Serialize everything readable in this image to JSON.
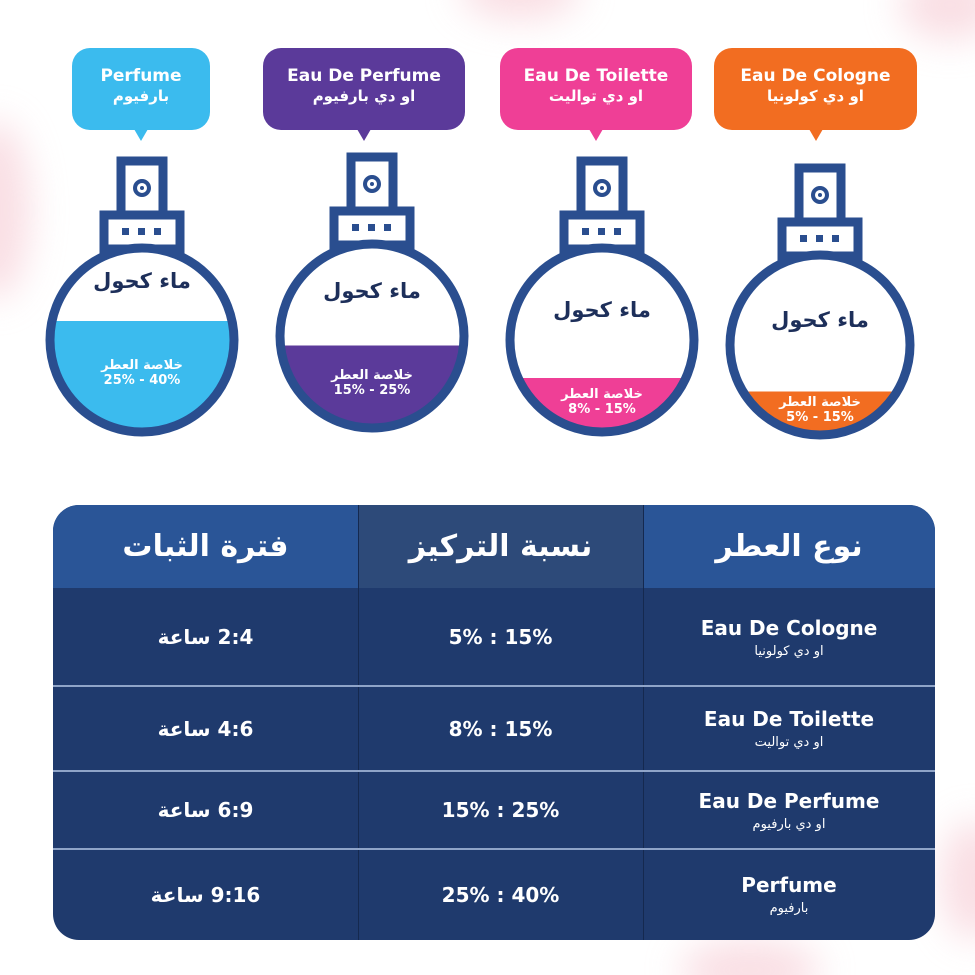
{
  "colors": {
    "perfume": "#3bbbee",
    "edp": "#5b3a9a",
    "edt": "#ef3f96",
    "edc": "#f26d21",
    "navy": "#2a4e8f",
    "header": "#2a5597",
    "header_mid": "#2d4a79",
    "body": "#1f3a6d"
  },
  "bottles": [
    {
      "en": "Perfume",
      "ar": "بارفيوم",
      "water": "ماء كحول",
      "essence": "خلاصة العطر",
      "range": "25% - 40%",
      "fill_fraction": 0.6
    },
    {
      "en": "Eau De Perfume",
      "ar": "او دي بارفيوم",
      "water": "ماء كحول",
      "essence": "خلاصة العطر",
      "range": "15% - 25%",
      "fill_fraction": 0.45
    },
    {
      "en": "Eau De Toilette",
      "ar": "او دي تواليت",
      "water": "ماء كحول",
      "essence": "خلاصة العطر",
      "range": "8% - 15%",
      "fill_fraction": 0.3
    },
    {
      "en": "Eau De Cologne",
      "ar": "او دي كولونيا",
      "water": "ماء كحول",
      "essence": "خلاصة العطر",
      "range": "5% - 15%",
      "fill_fraction": 0.25
    }
  ],
  "table": {
    "headers": {
      "type": "نوع العطر",
      "concentration": "نسبة التركيز",
      "duration": "فترة الثبات"
    },
    "rows": [
      {
        "en": "Eau De Cologne",
        "ar": "او دي كولونيا",
        "concentration": "5% : 15%",
        "duration": "2:4 ساعة"
      },
      {
        "en": "Eau De Toilette",
        "ar": "او دي تواليت",
        "concentration": "8% : 15%",
        "duration": "4:6 ساعة"
      },
      {
        "en": "Eau De Perfume",
        "ar": "او دي بارفيوم",
        "concentration": "15% : 25%",
        "duration": "6:9 ساعة"
      },
      {
        "en": "Perfume",
        "ar": "بارفيوم",
        "concentration": "25% : 40%",
        "duration": "9:16 ساعة"
      }
    ]
  }
}
